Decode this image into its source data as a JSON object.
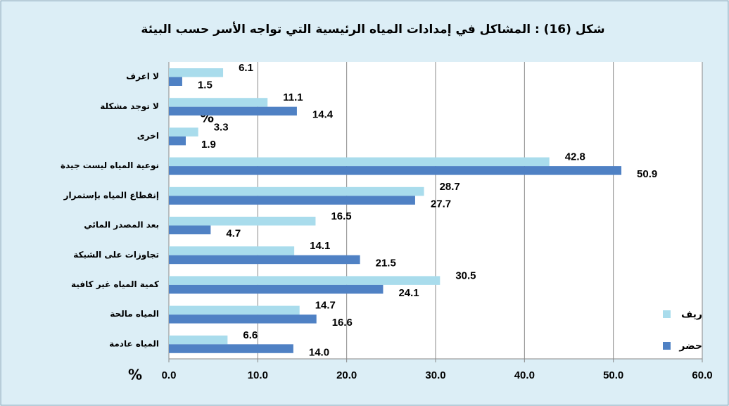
{
  "chart_data": {
    "type": "barh",
    "title": "شكل (16) : المشاكل في إمدادات المياه الرئيسية التي تواجه الأسر حسب البيئة",
    "x_label": "%",
    "annotations": [
      "%"
    ],
    "categories": [
      "لا اعرف",
      "لا توجد مشكلة",
      "اخرى",
      "نوعية المياه ليست جيدة",
      "إنقطاع المياه بإستمرار",
      "بعد المصدر المائي",
      "تجاوزات على الشبكة",
      "كمية المياه غير كافية",
      "المياه مالحة",
      "المياه عادمة"
    ],
    "series": [
      {
        "name": "ريف",
        "color": "#a9dcec",
        "values": [
          6.1,
          11.1,
          3.3,
          42.8,
          28.7,
          16.5,
          14.1,
          30.5,
          14.7,
          6.6
        ],
        "value_labels": [
          "6.1",
          "11.1",
          "3.3",
          "42.8",
          "28.7",
          "16.5",
          "14.1",
          "30.5",
          "14.7",
          "6.6"
        ]
      },
      {
        "name": "حضر",
        "color": "#4f81c4",
        "values": [
          1.5,
          14.4,
          1.9,
          50.9,
          27.7,
          4.7,
          21.5,
          24.1,
          16.6,
          14.0
        ],
        "value_labels": [
          "1.5",
          "14.4",
          "1.9",
          "50.9",
          "27.7",
          "4.7",
          "21.5",
          "24.1",
          "16.6",
          "14.0"
        ]
      }
    ],
    "xlim": [
      0,
      60
    ],
    "xticks": [
      {
        "value": 0,
        "label": "0.0"
      },
      {
        "value": 10,
        "label": "10.0"
      },
      {
        "value": 20,
        "label": "20.0"
      },
      {
        "value": 30,
        "label": "30.0"
      },
      {
        "value": 40,
        "label": "40.0"
      },
      {
        "value": 50,
        "label": "50.0"
      },
      {
        "value": 60,
        "label": "60.0"
      }
    ],
    "grid": true,
    "legend": "right"
  }
}
